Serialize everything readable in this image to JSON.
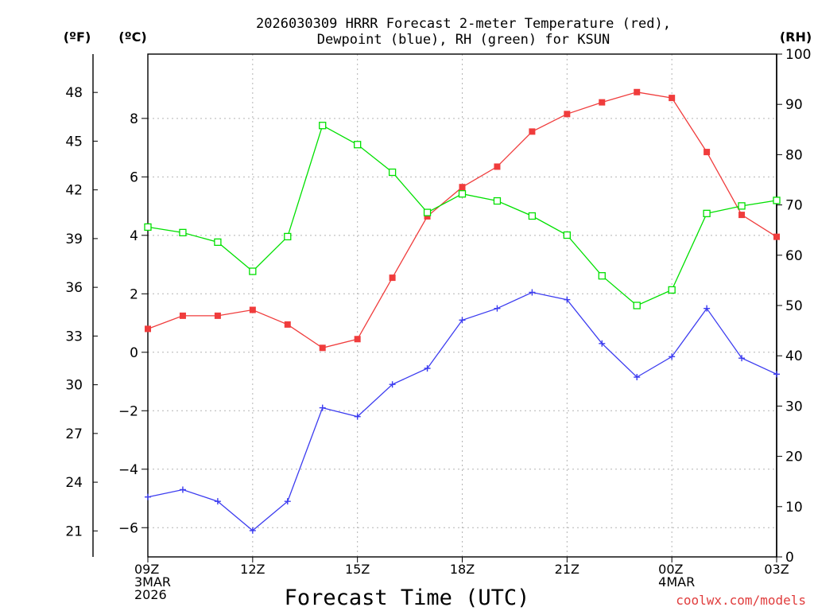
{
  "chart_data": {
    "type": "line",
    "title_line1": "2026030309 HRRR Forecast 2-meter Temperature (red),",
    "title_line2": "Dewpoint (blue), RH (green) for KSUN",
    "xlabel": "Forecast Time (UTC)",
    "credit": "coolwx.com/models",
    "axis_units": {
      "fahrenheit": "(ºF)",
      "celsius": "(ºC)",
      "rh": "(RH)"
    },
    "x_hours": [
      0,
      1,
      2,
      3,
      4,
      5,
      6,
      7,
      8,
      9,
      10,
      11,
      12,
      13,
      14,
      15,
      16,
      17,
      18
    ],
    "xlim": [
      0,
      18
    ],
    "x_ticks": [
      {
        "hour": 0,
        "lines": [
          "09Z",
          "3MAR",
          "2026"
        ]
      },
      {
        "hour": 3,
        "lines": [
          "12Z"
        ]
      },
      {
        "hour": 6,
        "lines": [
          "15Z"
        ]
      },
      {
        "hour": 9,
        "lines": [
          "18Z"
        ]
      },
      {
        "hour": 12,
        "lines": [
          "21Z"
        ]
      },
      {
        "hour": 15,
        "lines": [
          "00Z",
          "4MAR"
        ]
      },
      {
        "hour": 18,
        "lines": [
          "03Z"
        ]
      }
    ],
    "celsius_axis": {
      "ylim": [
        -7,
        10.2
      ],
      "ticks": [
        "-6",
        "-4",
        "-2",
        "0",
        "2",
        "4",
        "6",
        "8"
      ]
    },
    "fahrenheit_axis": {
      "ticks": [
        "21",
        "24",
        "27",
        "30",
        "33",
        "36",
        "39",
        "42",
        "45",
        "48"
      ]
    },
    "rh_axis": {
      "ylim": [
        0,
        100
      ],
      "ticks": [
        "0",
        "10",
        "20",
        "30",
        "40",
        "50",
        "60",
        "70",
        "80",
        "90",
        "100"
      ]
    },
    "series": [
      {
        "name": "Temperature",
        "unit": "C",
        "axis": "celsius",
        "color": "#f03c3c",
        "marker": "filled-square",
        "values": [
          0.8,
          1.25,
          1.25,
          1.45,
          0.95,
          0.15,
          0.45,
          2.55,
          4.65,
          5.65,
          6.35,
          7.55,
          8.15,
          8.55,
          8.9,
          8.7,
          6.85,
          4.7,
          3.95
        ]
      },
      {
        "name": "Dewpoint",
        "unit": "C",
        "axis": "celsius",
        "color": "#3c3cf0",
        "marker": "plus",
        "values": [
          -4.95,
          -4.7,
          -5.1,
          -6.1,
          -5.1,
          -1.9,
          -2.2,
          -1.1,
          -0.55,
          1.1,
          1.5,
          2.05,
          1.8,
          0.3,
          -0.85,
          -0.15,
          1.5,
          -0.2,
          -0.75
        ]
      },
      {
        "name": "RH",
        "unit": "%",
        "axis": "rh",
        "color": "#00e000",
        "marker": "open-square",
        "values": [
          65.6,
          64.5,
          62.6,
          56.8,
          63.7,
          85.8,
          82.0,
          76.5,
          68.5,
          72.2,
          70.8,
          67.8,
          64.0,
          55.9,
          50.0,
          53.1,
          68.3,
          69.8,
          70.9
        ]
      }
    ]
  }
}
